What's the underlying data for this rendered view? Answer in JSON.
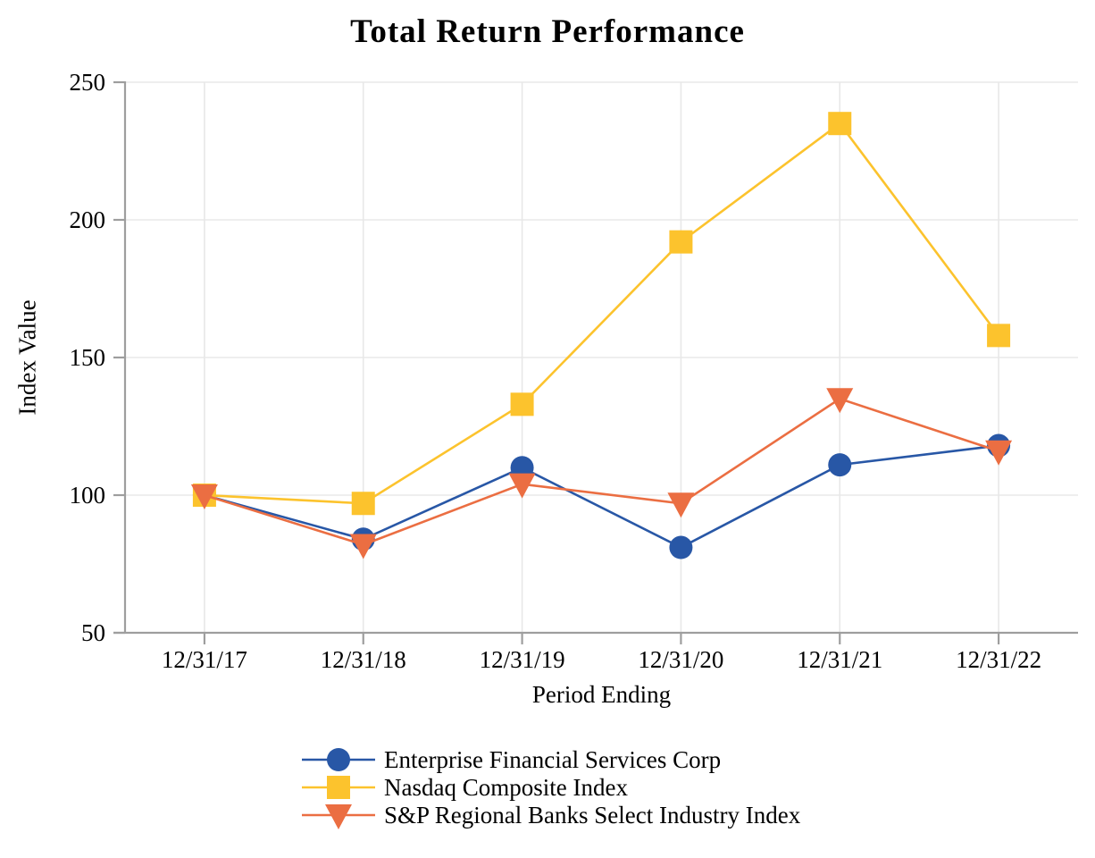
{
  "chart_data": {
    "type": "line",
    "title": "Total Return Performance",
    "xlabel": "Period Ending",
    "ylabel": "Index Value",
    "categories": [
      "12/31/17",
      "12/31/18",
      "12/31/19",
      "12/31/20",
      "12/31/21",
      "12/31/22"
    ],
    "yticks": [
      50,
      100,
      150,
      200,
      250
    ],
    "ylim": [
      50,
      250
    ],
    "grid": true,
    "legend_position": "bottom-left",
    "series": [
      {
        "name": "Enterprise Financial Services Corp",
        "marker": "circle",
        "color": "#2857A6",
        "values": [
          100,
          84,
          110,
          81,
          111,
          118
        ]
      },
      {
        "name": "Nasdaq Composite Index",
        "marker": "square",
        "color": "#FCC32D",
        "values": [
          100,
          97,
          133,
          192,
          235,
          158
        ]
      },
      {
        "name": "S&P Regional Banks Select Industry Index",
        "marker": "triangle-down",
        "color": "#EB6E42",
        "values": [
          100,
          82,
          104,
          97,
          135,
          116
        ]
      }
    ],
    "colors": {
      "axis": "#9E9E9E",
      "gridline": "#E8E8E8",
      "text": "#000000",
      "background": "#FFFFFF"
    }
  }
}
